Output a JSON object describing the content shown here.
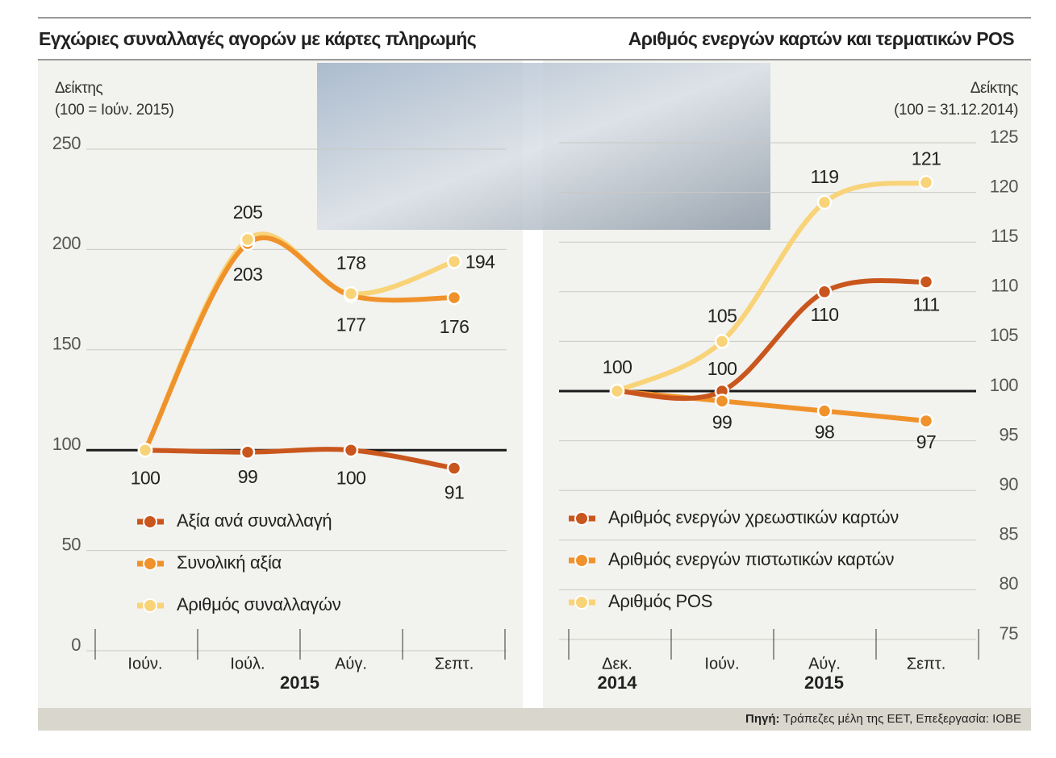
{
  "chart_data": [
    {
      "type": "line",
      "title": "Εγχώριες συναλλαγές αγορών με κάρτες πληρωμής",
      "ylabel": [
        "Δείκτης",
        "(100 = Ιούν. 2015)"
      ],
      "categories": [
        "Ιούν.",
        "Ιούλ.",
        "Αύγ.",
        "Σεπτ."
      ],
      "x_groups": [
        {
          "label": "2015",
          "span": 4
        }
      ],
      "ylim": [
        0,
        250
      ],
      "yticks": [
        0,
        50,
        100,
        150,
        200,
        250
      ],
      "baseline": 100,
      "grid": true,
      "series": [
        {
          "name": "Αξία ανά συναλλαγή",
          "color": "#c9561d",
          "values": [
            100,
            99,
            100,
            91
          ]
        },
        {
          "name": "Συνολική αξία",
          "color": "#f0922b",
          "values": [
            100,
            203,
            177,
            176
          ]
        },
        {
          "name": "Αριθμός συναλλαγών",
          "color": "#f8d377",
          "values": [
            100,
            205,
            178,
            194
          ]
        }
      ]
    },
    {
      "type": "line",
      "title": "Αριθμός ενεργών καρτών και τερματικών POS",
      "ylabel": [
        "Δείκτης",
        "(100 = 31.12.2014)"
      ],
      "categories": [
        "Δεκ.",
        "Ιούν.",
        "Αύγ.",
        "Σεπτ."
      ],
      "x_groups": [
        {
          "label": "2014",
          "span": 1
        },
        {
          "label": "2015",
          "span": 3
        }
      ],
      "ylim": [
        75,
        125
      ],
      "yticks": [
        75,
        80,
        85,
        90,
        95,
        100,
        105,
        110,
        115,
        120,
        125
      ],
      "baseline": 100,
      "grid": true,
      "series": [
        {
          "name": "Αριθμός ενεργών χρεωστικών καρτών",
          "color": "#c9561d",
          "values": [
            100,
            100,
            110,
            111
          ]
        },
        {
          "name": "Αριθμός ενεργών πιστωτικών καρτών",
          "color": "#f0922b",
          "values": [
            100,
            99,
            98,
            97
          ]
        },
        {
          "name": "Αριθμός POS",
          "color": "#f8d377",
          "values": [
            100,
            105,
            119,
            121
          ]
        }
      ]
    }
  ],
  "source": {
    "label": "Πηγή:",
    "text": "Τράπεζες μέλη της ΕΕΤ, Επεξεργασία: ΙΟΒΕ"
  }
}
